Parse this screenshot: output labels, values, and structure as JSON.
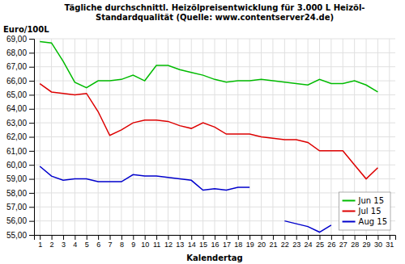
{
  "chart_data": {
    "type": "line",
    "title": "Tägliche durchschnittl. Heizölpreisentwicklung für 3.000 L Heizöl-\nStandardqualität (Quelle: www.contentserver24.de)",
    "xlabel": "Kalendertag",
    "ylabel": "Euro/100L",
    "x": [
      1,
      2,
      3,
      4,
      5,
      6,
      7,
      8,
      9,
      10,
      11,
      12,
      13,
      14,
      15,
      16,
      17,
      18,
      19,
      20,
      21,
      22,
      23,
      24,
      25,
      26,
      27,
      28,
      29,
      30,
      31
    ],
    "series": [
      {
        "name": "Jun 15",
        "color": "#00BB00",
        "values": [
          68.8,
          68.7,
          67.4,
          65.9,
          65.5,
          66.0,
          66.0,
          66.1,
          66.4,
          66.0,
          67.1,
          67.1,
          66.8,
          66.6,
          66.4,
          66.1,
          65.9,
          66.0,
          66.0,
          66.1,
          66.0,
          65.9,
          65.8,
          65.7,
          66.1,
          65.8,
          65.8,
          66.0,
          65.7,
          65.2,
          null
        ]
      },
      {
        "name": "Jul 15",
        "color": "#DD0000",
        "values": [
          65.8,
          65.2,
          65.1,
          65.0,
          65.1,
          63.8,
          62.1,
          62.5,
          63.0,
          63.2,
          63.2,
          63.1,
          62.8,
          62.6,
          63.0,
          62.7,
          62.2,
          62.2,
          62.2,
          62.0,
          61.9,
          61.8,
          61.8,
          61.6,
          61.0,
          61.0,
          61.0,
          60.0,
          59.0,
          59.8,
          null
        ]
      },
      {
        "name": "Aug 15",
        "color": "#0000CC",
        "values": [
          59.9,
          59.2,
          58.9,
          59.0,
          59.0,
          58.8,
          58.8,
          58.8,
          59.3,
          59.2,
          59.2,
          59.1,
          59.0,
          58.9,
          58.2,
          58.3,
          58.2,
          58.4,
          58.4,
          null,
          null,
          56.0,
          55.8,
          55.6,
          55.2,
          55.7,
          null,
          null,
          null,
          null,
          null
        ]
      }
    ],
    "xlim": [
      0.5,
      31.5
    ],
    "xticks": [
      1,
      2,
      3,
      4,
      5,
      6,
      7,
      8,
      9,
      10,
      11,
      12,
      13,
      14,
      15,
      16,
      17,
      18,
      19,
      20,
      21,
      22,
      23,
      24,
      25,
      26,
      27,
      28,
      29,
      30,
      31
    ],
    "ylim": [
      55.0,
      69.0
    ],
    "yticks": [
      {
        "value": 55.0,
        "label": "55,00"
      },
      {
        "value": 56.0,
        "label": "56,00"
      },
      {
        "value": 57.0,
        "label": "57,00"
      },
      {
        "value": 58.0,
        "label": "58,00"
      },
      {
        "value": 59.0,
        "label": "59,00"
      },
      {
        "value": 60.0,
        "label": "60,00"
      },
      {
        "value": 61.0,
        "label": "61,00"
      },
      {
        "value": 62.0,
        "label": "62,00"
      },
      {
        "value": 63.0,
        "label": "63,00"
      },
      {
        "value": 64.0,
        "label": "64,00"
      },
      {
        "value": 65.0,
        "label": "65,00"
      },
      {
        "value": 66.0,
        "label": "66,00"
      },
      {
        "value": 67.0,
        "label": "67,00"
      },
      {
        "value": 68.0,
        "label": "68,00"
      },
      {
        "value": 69.0,
        "label": "69,00"
      }
    ],
    "grid": true,
    "legend": "lower right"
  }
}
